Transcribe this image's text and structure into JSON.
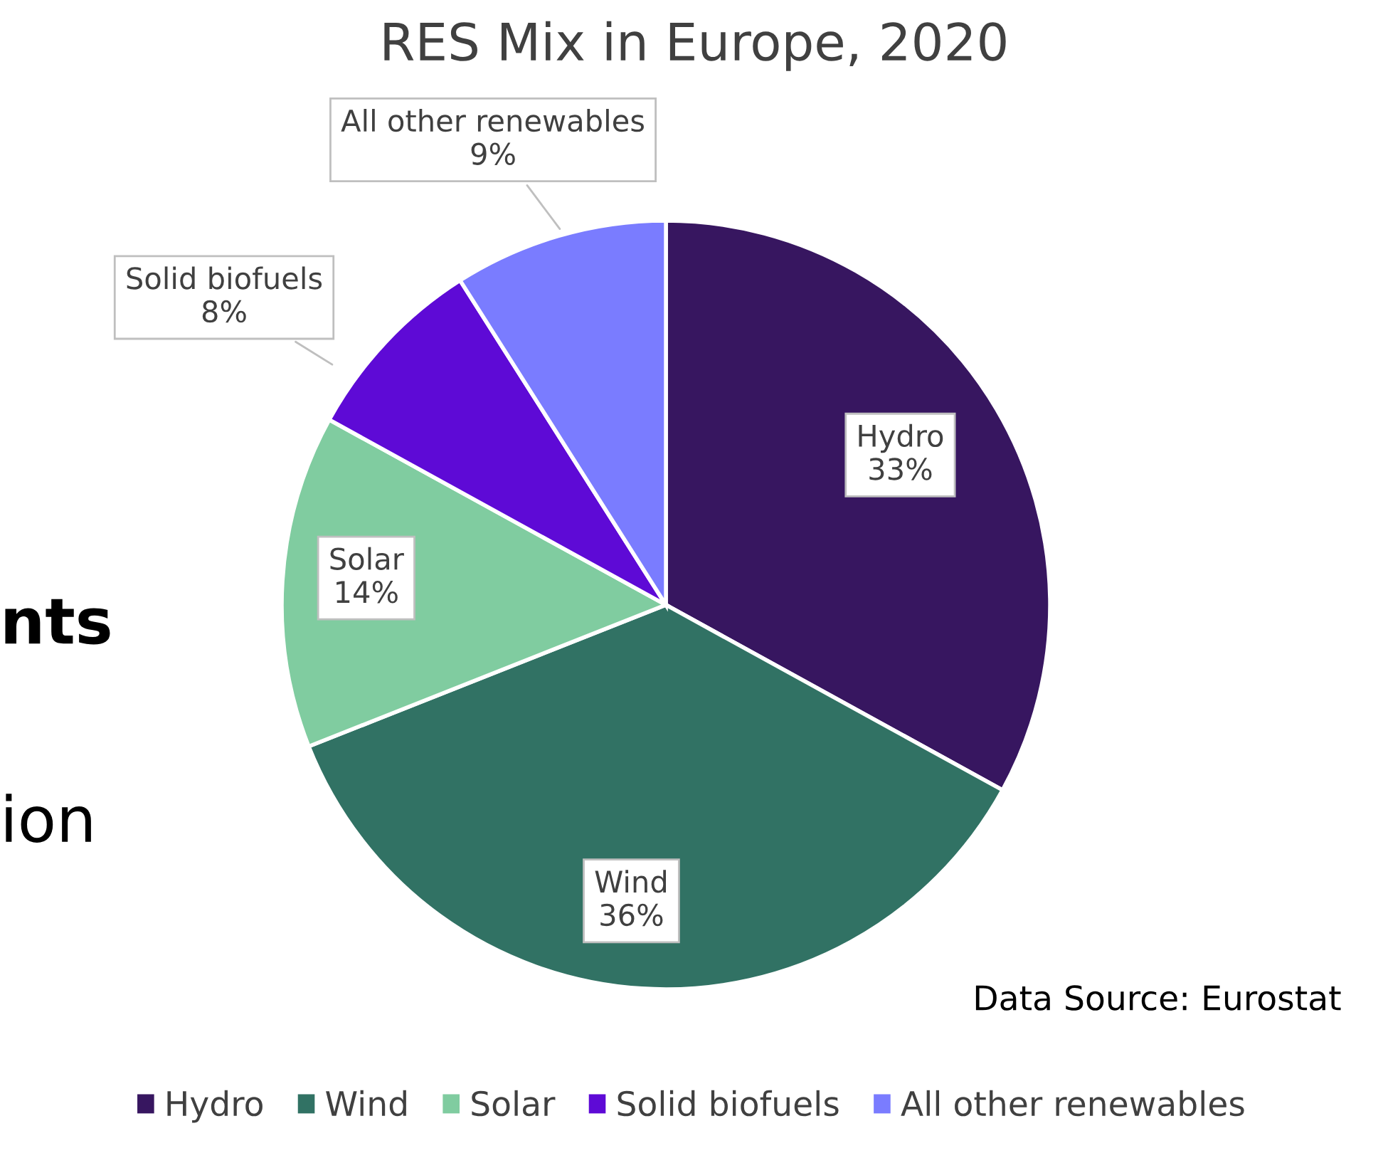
{
  "chart_data": {
    "type": "pie",
    "title": "RES Mix in Europe, 2020",
    "categories": [
      "Hydro",
      "Wind",
      "Solar",
      "Solid biofuels",
      "All other renewables"
    ],
    "values": [
      33,
      36,
      14,
      8,
      9
    ],
    "colors": [
      "#371660",
      "#317264",
      "#80cca0",
      "#5e0ad6",
      "#7a7cff"
    ],
    "value_labels": [
      "33%",
      "36%",
      "14%",
      "8%",
      "9%"
    ],
    "legend": "bottom",
    "annotations": [
      "Data Source: Eurostat",
      "nts",
      "ion"
    ]
  }
}
